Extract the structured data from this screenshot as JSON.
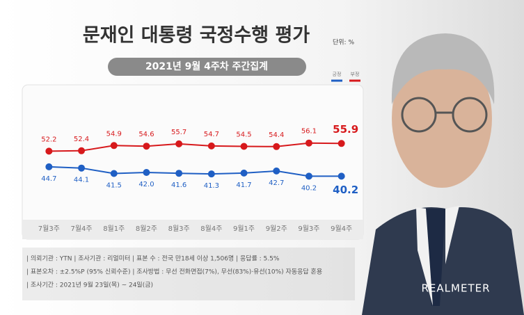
{
  "chart_data": {
    "type": "line",
    "title": "문재인 대통령 국정수행 평가",
    "unit_label": "단위: %",
    "subtitle": "2021년 9월 4주차 주간집계",
    "categories": [
      "7월3주",
      "7월4주",
      "8월1주",
      "8월2주",
      "8월3주",
      "8월4주",
      "9월1주",
      "9월2주",
      "9월3주",
      "9월4주"
    ],
    "series": [
      {
        "name": "긍정",
        "color": "#1f5fc4",
        "values": [
          44.7,
          44.1,
          41.5,
          42.0,
          41.6,
          41.3,
          41.7,
          42.7,
          40.2,
          40.2
        ],
        "value_labels": [
          "44.7",
          "44.1",
          "41.5",
          "42.0",
          "41.6",
          "41.3",
          "41.7",
          "42.7",
          "40.2",
          "40.2"
        ]
      },
      {
        "name": "부정",
        "color": "#d7191c",
        "values": [
          52.2,
          52.4,
          54.9,
          54.6,
          55.7,
          54.7,
          54.5,
          54.4,
          56.1,
          55.9
        ],
        "value_labels": [
          "52.2",
          "52.4",
          "54.9",
          "54.6",
          "55.7",
          "54.7",
          "54.5",
          "54.4",
          "56.1",
          "55.9"
        ]
      }
    ],
    "ylim": [
      18,
      83
    ],
    "notes": [
      "| 의뢰기관 : YTN  |  조사기관 : 리얼미터  |  표본 수 : 전국 만18세 이상 1,506명  |  응답률 : 5.5%",
      "| 표본오차 : ±2.5%P (95% 신뢰수준)  |  조사방법 : 무선 전화면접(7%), 무선(83%)·유선(10%) 자동응답 혼용",
      "| 조사기간 : 2021년 9월 23일(목) ~ 24일(금)"
    ],
    "source": "REALMETER"
  }
}
